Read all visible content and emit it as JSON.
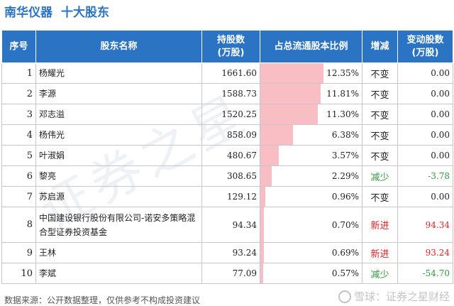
{
  "header": {
    "company": "南华仪器",
    "subtitle": "十大股东"
  },
  "table": {
    "columns": [
      "序号",
      "股东名称",
      "持股数\n(万股)",
      "占总流通股本比例",
      "增减",
      "变动股数\n(万股)"
    ],
    "rows": [
      {
        "idx": "1",
        "name": "杨耀光",
        "shares": "1661.60",
        "ratio": "12.35%",
        "ratio_value": 12.35,
        "change": "不变",
        "delta": "0.00",
        "tone": "flat"
      },
      {
        "idx": "2",
        "name": "李源",
        "shares": "1588.73",
        "ratio": "11.81%",
        "ratio_value": 11.81,
        "change": "不变",
        "delta": "0.00",
        "tone": "flat"
      },
      {
        "idx": "3",
        "name": "邓志溢",
        "shares": "1520.25",
        "ratio": "11.30%",
        "ratio_value": 11.3,
        "change": "不变",
        "delta": "0.00",
        "tone": "flat"
      },
      {
        "idx": "4",
        "name": "杨伟光",
        "shares": "858.09",
        "ratio": "6.38%",
        "ratio_value": 6.38,
        "change": "不变",
        "delta": "0.00",
        "tone": "flat"
      },
      {
        "idx": "5",
        "name": "叶淑娟",
        "shares": "480.67",
        "ratio": "3.57%",
        "ratio_value": 3.57,
        "change": "不变",
        "delta": "0.00",
        "tone": "flat"
      },
      {
        "idx": "6",
        "name": "黎亮",
        "shares": "308.65",
        "ratio": "2.29%",
        "ratio_value": 2.29,
        "change": "减少",
        "delta": "-3.78",
        "tone": "down"
      },
      {
        "idx": "7",
        "name": "苏启源",
        "shares": "129.12",
        "ratio": "0.96%",
        "ratio_value": 0.96,
        "change": "不变",
        "delta": "0.00",
        "tone": "flat"
      },
      {
        "idx": "8",
        "name": "中国建设银行股份有限公司-诺安多策略混合型证券投资基金",
        "shares": "94.34",
        "ratio": "0.70%",
        "ratio_value": 0.7,
        "change": "新进",
        "delta": "94.34",
        "tone": "up"
      },
      {
        "idx": "9",
        "name": "王林",
        "shares": "93.24",
        "ratio": "0.69%",
        "ratio_value": 0.69,
        "change": "新进",
        "delta": "93.24",
        "tone": "up"
      },
      {
        "idx": "10",
        "name": "李斌",
        "shares": "77.09",
        "ratio": "0.57%",
        "ratio_value": 0.57,
        "change": "减少",
        "delta": "-54.70",
        "tone": "down"
      }
    ]
  },
  "footer": {
    "source": "数据来源：公开数据整理，仅供参考不构成投资建议",
    "brand": "雪球：证券之星财经"
  },
  "colors": {
    "accent": "#2b73c3",
    "bar": "#f9bec3",
    "increase": "#e01f1f",
    "decrease": "#2f9a3c"
  }
}
